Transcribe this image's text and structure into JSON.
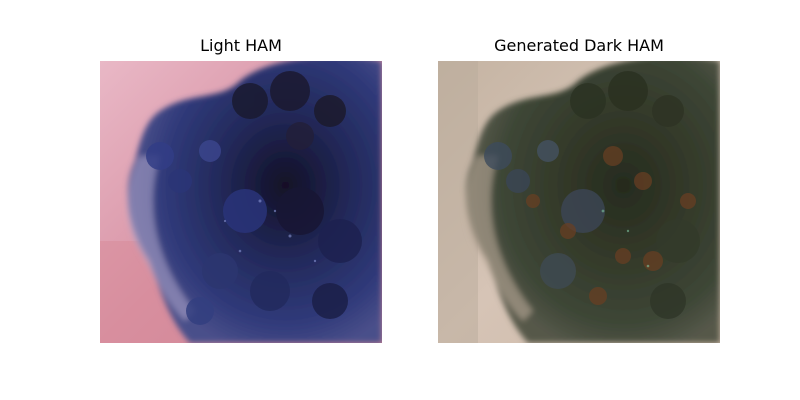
{
  "figure": {
    "panels": [
      {
        "title": "Light HAM",
        "image": "dermoscopy-lesion-original",
        "colors": {
          "skin": "#c98a9a",
          "skin_light": "#e6b3c4",
          "lesion_dark": "#1e1a38",
          "lesion_blue": "#2c3370",
          "lesion_highlight": "#5a66a8"
        }
      },
      {
        "title": "Generated Dark HAM",
        "image": "dermoscopy-lesion-generated",
        "colors": {
          "skin": "#c8b4a4",
          "skin_light": "#ddd0c6",
          "lesion_dark": "#2e3526",
          "lesion_brown": "#5a3a22",
          "lesion_blue": "#3c4a5e"
        }
      }
    ]
  }
}
